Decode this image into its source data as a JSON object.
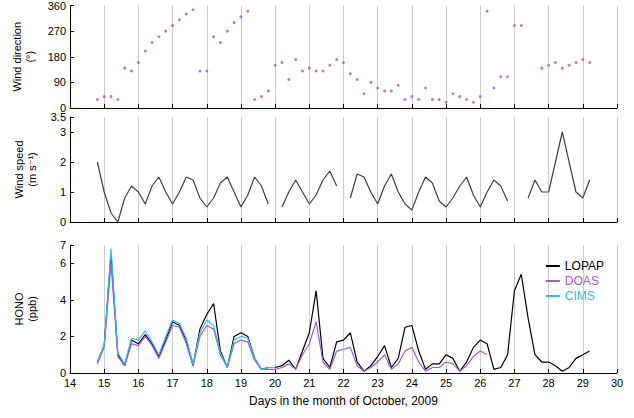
{
  "chart_data": [
    {
      "type": "scatter",
      "ylabel": "Wind direction\n(°)",
      "xlim": [
        14,
        30
      ],
      "xticks": [
        14,
        15,
        16,
        17,
        18,
        19,
        20,
        21,
        22,
        23,
        24,
        25,
        26,
        27,
        28,
        29,
        30
      ],
      "ylim": [
        0,
        360
      ],
      "yticks": [
        0,
        90,
        180,
        270,
        360
      ],
      "grid": "x",
      "tick_labels": "y",
      "marker": "circle",
      "x": [
        14.8,
        15,
        15.2,
        15.4,
        15.6,
        15.8,
        16,
        16.2,
        16.4,
        16.6,
        16.8,
        17,
        17.2,
        17.4,
        17.6,
        17.8,
        18,
        18.2,
        18.4,
        18.6,
        18.8,
        19,
        19.2,
        19.4,
        19.6,
        19.8,
        20,
        20.2,
        20.4,
        20.6,
        20.8,
        21,
        21.2,
        21.4,
        21.6,
        21.8,
        22,
        22.2,
        22.4,
        22.6,
        22.8,
        23,
        23.2,
        23.4,
        23.6,
        23.8,
        24,
        24.2,
        24.4,
        24.6,
        24.8,
        25,
        25.2,
        25.4,
        25.6,
        25.8,
        26,
        26.2,
        26.4,
        26.6,
        26.8,
        27,
        27.2,
        27.4,
        27.6,
        27.8,
        28,
        28.2,
        28.4,
        28.6,
        28.8,
        29,
        29.2
      ],
      "series": [
        {
          "color": "#a05ad8",
          "values": [
            30,
            40,
            40,
            30,
            140,
            130,
            160,
            200,
            230,
            250,
            270,
            290,
            310,
            330,
            345,
            130,
            130,
            250,
            230,
            270,
            300,
            320,
            340,
            30,
            40,
            60,
            150,
            160,
            100,
            170,
            130,
            140,
            130,
            130,
            150,
            170,
            160,
            120,
            100,
            50,
            90,
            70,
            60,
            60,
            80,
            30,
            40,
            30,
            70,
            30,
            30,
            20,
            50,
            40,
            30,
            20,
            40,
            340,
            70,
            110,
            110,
            290,
            290,
            null,
            null,
            140,
            150,
            160,
            140,
            150,
            160,
            170,
            160
          ]
        }
      ]
    },
    {
      "type": "line",
      "ylabel": "Wind speed\n(m s⁻¹)",
      "xlim": [
        14,
        30
      ],
      "xticks": [
        14,
        15,
        16,
        17,
        18,
        19,
        20,
        21,
        22,
        23,
        24,
        25,
        26,
        27,
        28,
        29,
        30
      ],
      "ylim": [
        0,
        3.5
      ],
      "yticks": [
        0,
        1,
        2,
        3
      ],
      "grid": "x",
      "tick_labels": "y",
      "line_style": "solid",
      "x": [
        14.8,
        15,
        15.2,
        15.4,
        15.6,
        15.8,
        16,
        16.2,
        16.4,
        16.6,
        16.8,
        17,
        17.2,
        17.4,
        17.6,
        17.8,
        18,
        18.2,
        18.4,
        18.6,
        18.8,
        19,
        19.2,
        19.4,
        19.6,
        19.8,
        20,
        20.2,
        20.4,
        20.6,
        20.8,
        21,
        21.2,
        21.4,
        21.6,
        21.8,
        22,
        22.2,
        22.4,
        22.6,
        22.8,
        23,
        23.2,
        23.4,
        23.6,
        23.8,
        24,
        24.2,
        24.4,
        24.6,
        24.8,
        25,
        25.2,
        25.4,
        25.6,
        25.8,
        26,
        26.2,
        26.4,
        26.6,
        26.8,
        27,
        27.2,
        27.4,
        27.6,
        27.8,
        28,
        28.2,
        28.4,
        28.6,
        28.8,
        29,
        29.2
      ],
      "series": [
        {
          "color": "#404040",
          "values": [
            2.0,
            1.0,
            0.3,
            0.0,
            0.8,
            1.2,
            1.0,
            0.6,
            1.2,
            1.5,
            1.0,
            0.6,
            1.0,
            1.5,
            1.4,
            0.8,
            0.5,
            0.8,
            1.3,
            1.5,
            1.0,
            0.5,
            0.9,
            1.5,
            1.2,
            0.6,
            null,
            0.5,
            1.0,
            1.4,
            1.0,
            0.6,
            0.9,
            1.4,
            1.7,
            1.2,
            null,
            0.8,
            1.6,
            1.5,
            1.0,
            0.6,
            1.2,
            1.6,
            1.0,
            0.6,
            0.4,
            1.0,
            1.5,
            1.3,
            0.7,
            0.5,
            0.8,
            1.2,
            1.5,
            0.9,
            0.5,
            1.0,
            1.4,
            1.2,
            0.7,
            null,
            null,
            0.8,
            1.4,
            1.0,
            1.0,
            2.0,
            3.0,
            2.0,
            1.0,
            0.8,
            1.4
          ]
        }
      ]
    },
    {
      "type": "line",
      "ylabel": "HONO\n(ppb)",
      "xlabel": "Days in the month of October, 2009",
      "xlim": [
        14,
        30
      ],
      "xticks": [
        14,
        15,
        16,
        17,
        18,
        19,
        20,
        21,
        22,
        23,
        24,
        25,
        26,
        27,
        28,
        29,
        30
      ],
      "ylim": [
        0,
        7
      ],
      "yticks": [
        0,
        2,
        4,
        6
      ],
      "grid": "x",
      "legend": "upper right",
      "line_style": "solid",
      "x": [
        14.8,
        15,
        15.2,
        15.4,
        15.6,
        15.8,
        16,
        16.2,
        16.4,
        16.6,
        16.8,
        17,
        17.2,
        17.4,
        17.6,
        17.8,
        18,
        18.2,
        18.4,
        18.6,
        18.8,
        19,
        19.2,
        19.4,
        19.6,
        19.8,
        20,
        20.2,
        20.4,
        20.6,
        20.8,
        21,
        21.2,
        21.4,
        21.6,
        21.8,
        22,
        22.2,
        22.4,
        22.6,
        22.8,
        23,
        23.2,
        23.4,
        23.6,
        23.8,
        24,
        24.2,
        24.4,
        24.6,
        24.8,
        25,
        25.2,
        25.4,
        25.6,
        25.8,
        26,
        26.2,
        26.4,
        26.6,
        26.8,
        27,
        27.2,
        27.4,
        27.6,
        27.8,
        28,
        28.2,
        28.4,
        28.6,
        28.8,
        29,
        29.2
      ],
      "series": [
        {
          "name": "LOPAP",
          "color": "#000000",
          "values": [
            0.6,
            1.5,
            6.5,
            1.0,
            0.4,
            1.8,
            1.6,
            2.1,
            1.6,
            0.9,
            1.8,
            2.8,
            2.6,
            1.8,
            0.4,
            2.4,
            3.2,
            3.8,
            1.2,
            0.3,
            2.0,
            2.2,
            2.0,
            0.8,
            0.2,
            0.3,
            0.3,
            0.4,
            0.7,
            0.2,
            1.2,
            2.2,
            4.5,
            0.8,
            0.3,
            1.7,
            1.8,
            2.2,
            0.6,
            0.1,
            0.4,
            0.9,
            1.5,
            0.3,
            0.8,
            2.5,
            2.6,
            1.2,
            0.2,
            0.5,
            0.5,
            1.0,
            0.8,
            0.1,
            0.6,
            1.4,
            1.8,
            1.6,
            0.2,
            0.3,
            1.0,
            4.5,
            5.4,
            3.0,
            1.0,
            0.6,
            0.6,
            0.4,
            0.1,
            0.3,
            0.8,
            1.0,
            1.2
          ]
        },
        {
          "name": "DOAS",
          "color": "#a05ad8",
          "values": [
            0.5,
            1.4,
            6.0,
            0.9,
            0.4,
            1.6,
            1.5,
            2.0,
            1.5,
            0.8,
            1.7,
            2.6,
            2.5,
            1.6,
            0.4,
            2.0,
            2.6,
            2.4,
            1.0,
            0.3,
            1.6,
            1.8,
            1.7,
            0.7,
            0.2,
            0.2,
            0.2,
            0.3,
            0.5,
            0.2,
            1.0,
            1.6,
            2.8,
            0.6,
            0.2,
            1.2,
            1.3,
            1.4,
            0.4,
            0.1,
            0.3,
            0.6,
            1.0,
            0.2,
            0.5,
            1.2,
            1.4,
            0.6,
            0.1,
            0.3,
            0.3,
            0.6,
            0.5,
            0.1,
            0.4,
            0.9,
            1.2,
            1.0,
            null,
            null,
            null,
            null,
            null,
            null,
            null,
            null,
            null,
            null,
            null,
            null,
            null,
            null,
            null
          ]
        },
        {
          "name": "CIMS",
          "color": "#33bbee",
          "values": [
            0.6,
            1.5,
            6.8,
            1.1,
            0.5,
            1.9,
            1.8,
            2.3,
            1.7,
            1.0,
            2.0,
            2.9,
            2.7,
            1.9,
            0.5,
            2.2,
            2.9,
            2.6,
            1.1,
            0.3,
            1.8,
            2.0,
            1.9,
            0.8,
            0.2,
            0.3,
            0.3,
            null,
            null,
            null,
            null,
            null,
            null,
            null,
            null,
            null,
            null,
            null,
            null,
            null,
            null,
            null,
            null,
            null,
            null,
            null,
            null,
            null,
            null,
            null,
            null,
            null,
            null,
            null,
            null,
            null,
            null,
            null,
            null,
            null,
            null,
            null,
            null,
            null,
            null,
            null,
            null,
            null,
            null,
            null,
            null,
            null,
            null
          ]
        }
      ]
    }
  ]
}
